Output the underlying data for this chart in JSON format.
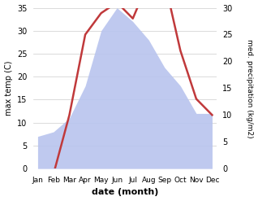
{
  "months": [
    "Jan",
    "Feb",
    "Mar",
    "Apr",
    "May",
    "Jun",
    "Jul",
    "Aug",
    "Sep",
    "Oct",
    "Nov",
    "Dec"
  ],
  "temp": [
    -1,
    -1,
    10,
    25,
    29,
    31,
    28,
    35,
    35,
    22,
    13,
    10
  ],
  "precip": [
    7,
    8,
    11,
    18,
    30,
    35,
    32,
    28,
    22,
    18,
    12,
    12
  ],
  "temp_color": "#c0393b",
  "precip_color": "#b8c4ee",
  "left_ylabel": "max temp (C)",
  "right_ylabel": "med. precipitation (kg/m2)",
  "xlabel": "date (month)",
  "ylim_left": [
    0,
    35
  ],
  "ylim_right": [
    0,
    30
  ],
  "yticks_left": [
    0,
    5,
    10,
    15,
    20,
    25,
    30,
    35
  ],
  "yticks_right": [
    0,
    5,
    10,
    15,
    20,
    25,
    30
  ],
  "bg_color": "#ffffff",
  "line_width": 1.8
}
